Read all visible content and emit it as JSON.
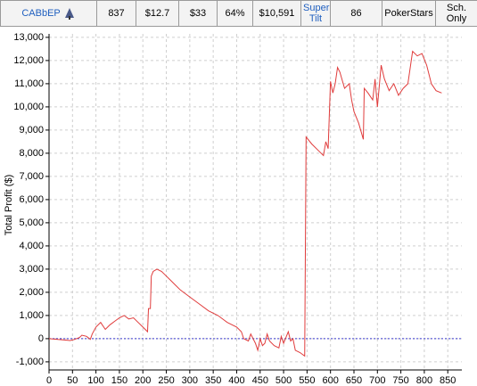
{
  "table": {
    "rows": [
      [
        "CABbEP",
        "837",
        "$12.7",
        "$33",
        "64%",
        "$10,591",
        "Super Tilt",
        "86",
        "PokerStars",
        "Sch. Only"
      ]
    ]
  },
  "chart_data": {
    "type": "line",
    "y_label": "Total Profit ($)",
    "x": [
      0,
      10,
      30,
      45,
      55,
      65,
      70,
      80,
      88,
      92,
      100,
      110,
      120,
      130,
      140,
      150,
      160,
      170,
      180,
      190,
      200,
      210,
      212,
      216,
      218,
      222,
      230,
      240,
      250,
      260,
      270,
      280,
      300,
      320,
      340,
      360,
      380,
      400,
      410,
      415,
      425,
      430,
      440,
      445,
      450,
      455,
      460,
      465,
      470,
      480,
      490,
      495,
      500,
      510,
      515,
      520,
      525,
      535,
      545,
      548,
      560,
      575,
      585,
      590,
      595,
      600,
      605,
      610,
      615,
      620,
      630,
      640,
      645,
      650,
      660,
      670,
      672,
      680,
      690,
      695,
      700,
      708,
      715,
      725,
      735,
      745,
      755,
      765,
      775,
      785,
      795,
      805,
      815,
      825,
      837
    ],
    "series": [
      {
        "name": "Total Profit",
        "color": "#e03c3c",
        "values": [
          0,
          -20,
          -50,
          -80,
          -30,
          50,
          150,
          100,
          -30,
          200,
          500,
          700,
          400,
          600,
          750,
          900,
          1000,
          850,
          900,
          700,
          500,
          300,
          1300,
          1300,
          2700,
          2900,
          3000,
          2900,
          2700,
          2500,
          2300,
          2100,
          1800,
          1500,
          1200,
          1000,
          700,
          500,
          300,
          0,
          -100,
          200,
          -200,
          -500,
          0,
          -300,
          -200,
          200,
          -100,
          -300,
          -400,
          100,
          -200,
          300,
          -100,
          0,
          -500,
          -600,
          -750,
          8700,
          8400,
          8100,
          7900,
          8500,
          8200,
          11100,
          10600,
          11000,
          11700,
          11500,
          10800,
          11000,
          10300,
          9800,
          9300,
          8600,
          10800,
          10600,
          10300,
          11200,
          10000,
          11800,
          11200,
          10700,
          11000,
          10500,
          10800,
          11000,
          12400,
          12200,
          12300,
          11800,
          11000,
          10700,
          10600
        ]
      }
    ],
    "reference_line": 0,
    "reference_color": "#3a3ad0",
    "xlim": [
      0,
      880
    ],
    "ylim": [
      -1350,
      13150
    ],
    "xticks": [
      0,
      50,
      100,
      150,
      200,
      250,
      300,
      350,
      400,
      450,
      500,
      550,
      600,
      650,
      700,
      750,
      800,
      850
    ],
    "yticks": [
      {
        "value": -1000,
        "label": "-1,000"
      },
      0,
      {
        "value": 1000,
        "label": "1,000"
      },
      {
        "value": 2000,
        "label": "2,000"
      },
      {
        "value": 3000,
        "label": "3,000"
      },
      {
        "value": 4000,
        "label": "4,000"
      },
      {
        "value": 5000,
        "label": "5,000"
      },
      {
        "value": 6000,
        "label": "6,000"
      },
      {
        "value": 7000,
        "label": "7,000"
      },
      {
        "value": 8000,
        "label": "8,000"
      },
      {
        "value": 9000,
        "label": "9,000"
      },
      {
        "value": 10000,
        "label": "10,000"
      },
      {
        "value": 11000,
        "label": "11,000"
      },
      {
        "value": 12000,
        "label": "12,000"
      },
      {
        "value": 13000,
        "label": "13,000"
      }
    ],
    "grid": true
  }
}
